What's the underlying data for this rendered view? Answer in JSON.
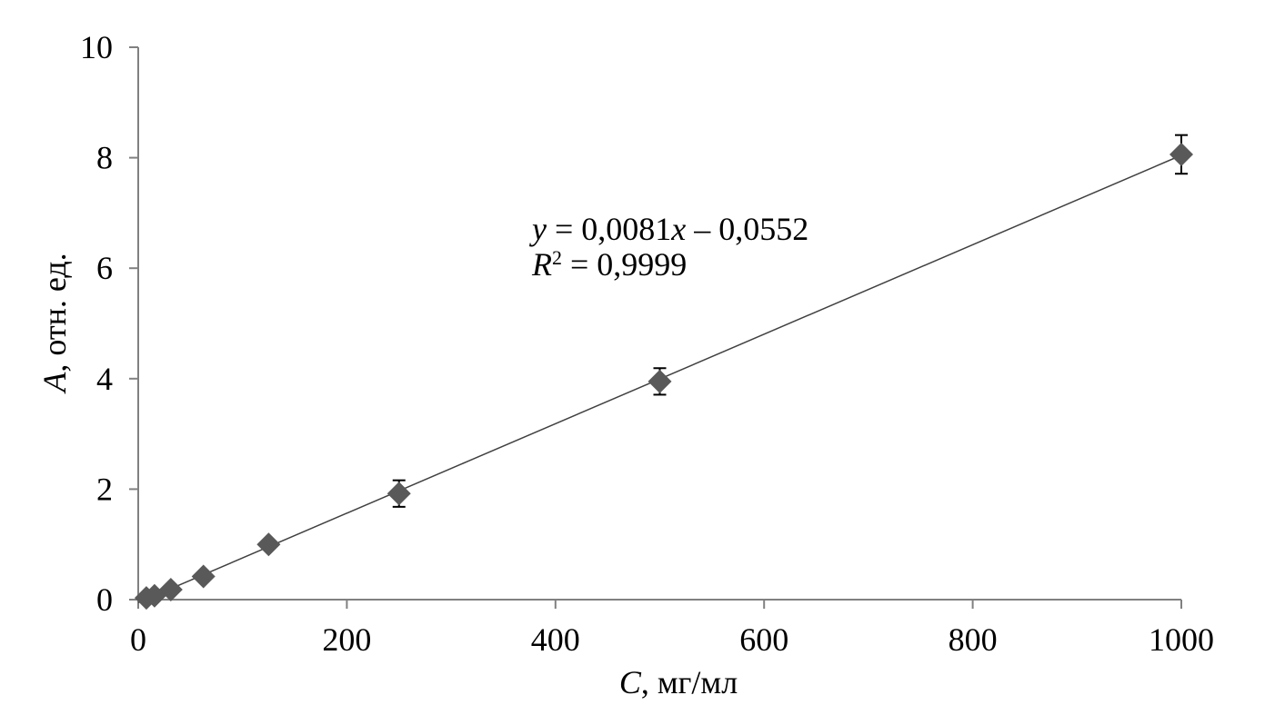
{
  "chart_data": {
    "type": "scatter",
    "xlabel": {
      "symbol": "C",
      "rest": ", мг/мл"
    },
    "ylabel": {
      "symbol": "A",
      "rest": ", отн. ед."
    },
    "xlim": [
      0,
      1000
    ],
    "ylim": [
      0,
      10
    ],
    "xticks": [
      "0",
      "200",
      "400",
      "600",
      "800",
      "1000"
    ],
    "yticks": [
      "0",
      "2",
      "4",
      "6",
      "8",
      "10"
    ],
    "grid": false,
    "points": [
      {
        "x": 7.8,
        "y": 0.03,
        "err": 0.0
      },
      {
        "x": 15.6,
        "y": 0.07,
        "err": 0.0
      },
      {
        "x": 31.25,
        "y": 0.18,
        "err": 0.0
      },
      {
        "x": 62.5,
        "y": 0.42,
        "err": 0.0
      },
      {
        "x": 125,
        "y": 1.0,
        "err": 0.0
      },
      {
        "x": 250,
        "y": 1.92,
        "err": 0.24
      },
      {
        "x": 500,
        "y": 3.95,
        "err": 0.24
      },
      {
        "x": 1000,
        "y": 8.06,
        "err": 0.35
      }
    ],
    "trendline": {
      "slope": 0.0081,
      "intercept": -0.0552
    },
    "equation": {
      "y_var": "y",
      "equation_rest": " = 0,0081",
      "x_var": "x",
      "equation_tail": " – 0,0552",
      "r_var": "R",
      "r_sup": "2",
      "r_rest": " = 0,9999"
    },
    "colors": {
      "marker": "#595959",
      "line": "#404040",
      "axis": "#808080",
      "errorbar": "#000000"
    }
  }
}
